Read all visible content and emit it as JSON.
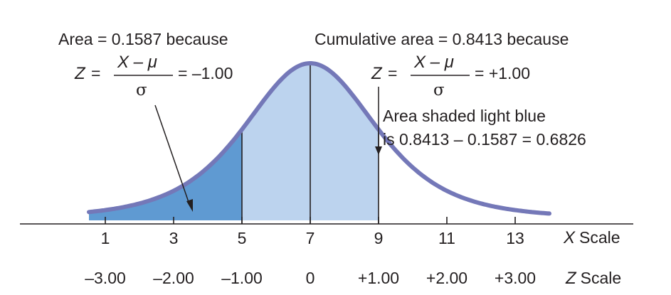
{
  "colors": {
    "curve": "#7478b8",
    "shade_dark": "#5f9ad2",
    "shade_light": "#bcd3ee",
    "ink": "#231f20"
  },
  "annotations": {
    "left_heading": "Area = 0.1587 because",
    "left_z": "Z",
    "left_equals": "=",
    "left_numerator": "X – μ",
    "left_denominator": "σ",
    "left_result": "= –1.00",
    "right_heading": "Cumulative area = 0.8413 because",
    "right_z": "Z",
    "right_equals": "=",
    "right_numerator": "X – μ",
    "right_denominator": "σ",
    "right_result": "= +1.00",
    "shaded_line1": "Area shaded light blue",
    "shaded_line2": "is 0.8413 – 0.1587 = 0.6826"
  },
  "axes": {
    "x_scale_symbol": "X",
    "x_scale_word": "Scale",
    "z_scale_symbol": "Z",
    "z_scale_word": "Scale"
  },
  "chart_data": {
    "type": "area",
    "distribution": "normal",
    "mean": 7,
    "sd": 2,
    "x_ticks": [
      "1",
      "3",
      "5",
      "7",
      "9",
      "11",
      "13"
    ],
    "x_values": [
      1,
      3,
      5,
      7,
      9,
      11,
      13
    ],
    "z_ticks": [
      "–3.00",
      "–2.00",
      "–1.00",
      "0",
      "+1.00",
      "+2.00",
      "+3.00"
    ],
    "shaded_regions": [
      {
        "from_x": 0.2,
        "to_x": 5,
        "area": 0.1587,
        "color": "dark"
      },
      {
        "from_x": 5,
        "to_x": 9,
        "area": 0.6826,
        "color": "light"
      }
    ],
    "vertical_lines_x": [
      5,
      7,
      9
    ]
  }
}
